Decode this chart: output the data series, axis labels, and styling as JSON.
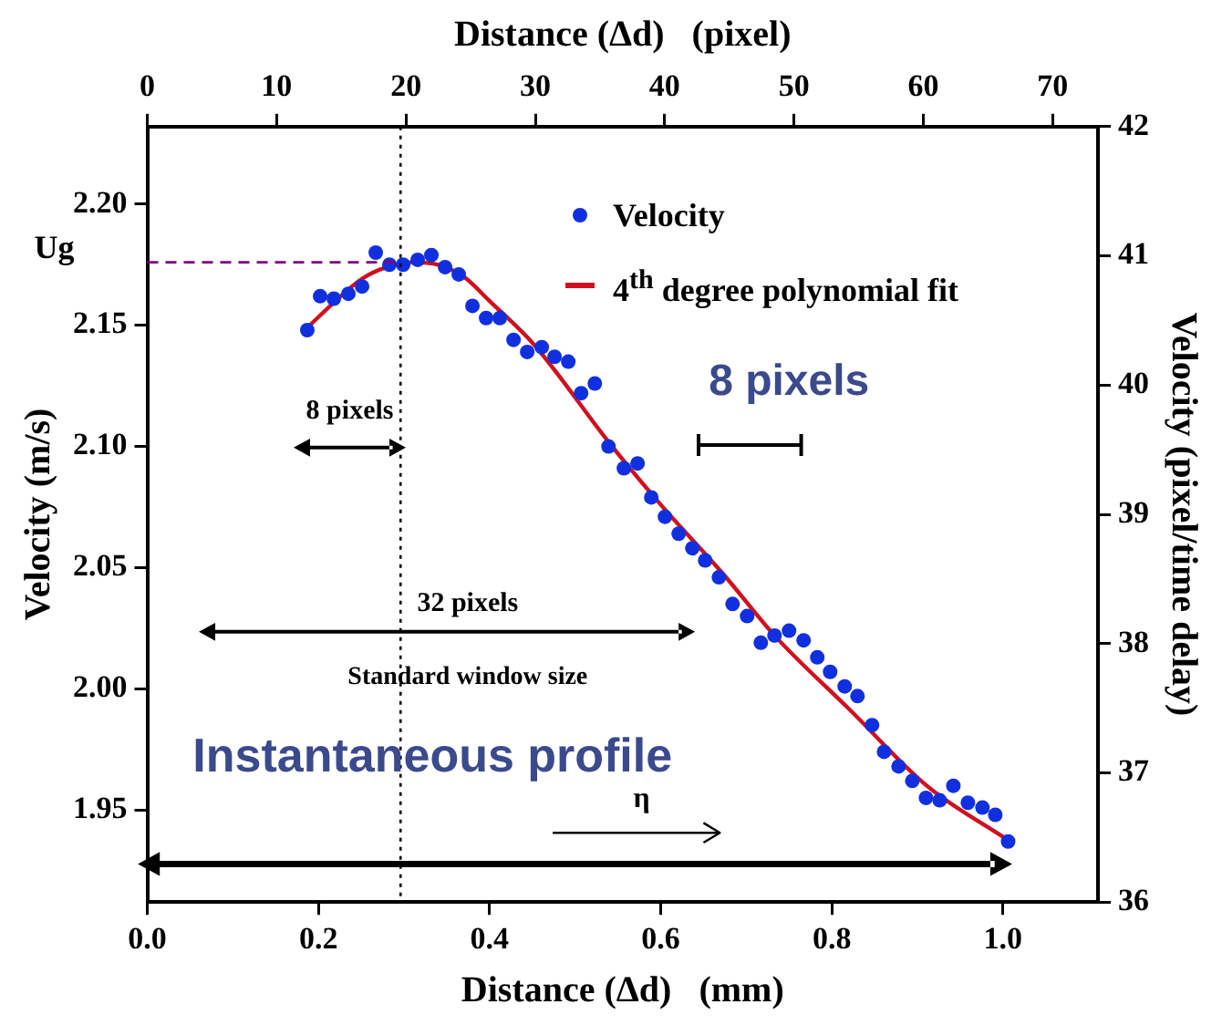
{
  "chart_data": {
    "type": "scatter",
    "xlabel": "Distance (Δd)   (mm)",
    "x2label": "Distance (Δd)   (pixel)",
    "ylabel": "Velocity (m/s)",
    "y2label": "Velocity (pixel/time delay)",
    "xlim": [
      0,
      1.111
    ],
    "xticks": [
      {
        "value": 0,
        "label": "0.0"
      },
      0.2,
      0.4,
      0.6,
      0.8,
      {
        "value": 1,
        "label": "1.0"
      }
    ],
    "x2lim": [
      0,
      73.5
    ],
    "x2ticks": [
      0,
      10,
      20,
      30,
      40,
      50,
      60,
      70
    ],
    "ylim": [
      1.912,
      2.232
    ],
    "yticks": [
      1.95,
      {
        "value": 2,
        "label": "2.00"
      },
      2.05,
      {
        "value": 2.1,
        "label": "2.10"
      },
      2.15,
      {
        "value": 2.2,
        "label": "2.20"
      }
    ],
    "y2lim": [
      36,
      42
    ],
    "y2ticks": [
      36,
      37,
      38,
      39,
      40,
      41,
      42
    ],
    "grid": false,
    "legend": "top right",
    "series": [
      {
        "name": "Velocity",
        "type": "scatter",
        "marker": "circle",
        "color": "#1030e0",
        "x": [
          0.187,
          0.202,
          0.218,
          0.235,
          0.251,
          0.267,
          0.283,
          0.299,
          0.316,
          0.332,
          0.348,
          0.364,
          0.38,
          0.396,
          0.412,
          0.428,
          0.444,
          0.461,
          0.476,
          0.492,
          0.507,
          0.523,
          0.539,
          0.557,
          0.573,
          0.589,
          0.605,
          0.621,
          0.637,
          0.652,
          0.668,
          0.684,
          0.701,
          0.717,
          0.733,
          0.75,
          0.767,
          0.783,
          0.798,
          0.815,
          0.83,
          0.847,
          0.861,
          0.878,
          0.894,
          0.91,
          0.926,
          0.942,
          0.959,
          0.976,
          0.991,
          1.006
        ],
        "values": [
          2.148,
          2.162,
          2.161,
          2.163,
          2.166,
          2.18,
          2.175,
          2.175,
          2.177,
          2.179,
          2.174,
          2.171,
          2.158,
          2.153,
          2.153,
          2.144,
          2.139,
          2.141,
          2.137,
          2.135,
          2.122,
          2.126,
          2.1,
          2.091,
          2.093,
          2.079,
          2.071,
          2.064,
          2.058,
          2.053,
          2.046,
          2.035,
          2.03,
          2.019,
          2.022,
          2.024,
          2.02,
          2.013,
          2.007,
          2.001,
          1.997,
          1.985,
          1.974,
          1.968,
          1.962,
          1.955,
          1.954,
          1.96,
          1.953,
          1.951,
          1.948,
          1.937
        ]
      },
      {
        "name": "4$^{th}$ degree polynomial fit",
        "type": "line",
        "marker": "none",
        "line_style": "solid",
        "color": "#d01020",
        "x": [
          0.187,
          0.22,
          0.25,
          0.28,
          0.31,
          0.34,
          0.37,
          0.4,
          0.452,
          0.541,
          0.6,
          0.674,
          0.733,
          0.822,
          0.911,
          1.004
        ],
        "values": [
          2.149,
          2.16,
          2.169,
          2.174,
          2.176,
          2.175,
          2.17,
          2.16,
          2.142,
          2.101,
          2.076,
          2.047,
          2.022,
          1.991,
          1.96,
          1.938
        ]
      }
    ],
    "ref_lines": [
      {
        "axis": "x",
        "value": 0.296,
        "color": "#000000",
        "line_style": "dotted"
      },
      {
        "axis": "y",
        "value": 2.176,
        "label": "Ug",
        "color": "#800080",
        "line_style": "dashed"
      }
    ],
    "annotations": [
      "8 pixels",
      "32 pixels",
      "Standard window size",
      "8 pixels",
      "Instantaneous profile",
      "η"
    ]
  }
}
